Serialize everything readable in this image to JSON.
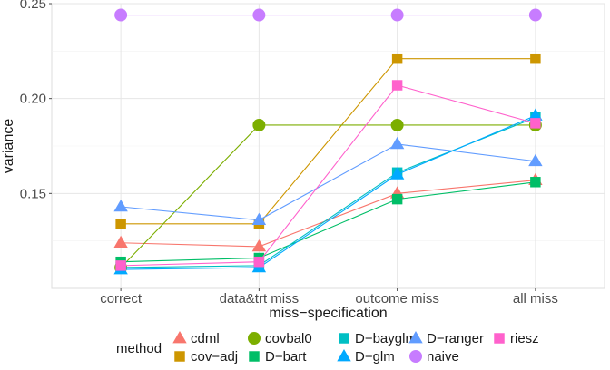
{
  "chart_data": {
    "type": "line",
    "title": "",
    "xlabel": "miss−specification",
    "ylabel": "variance",
    "categories": [
      "correct",
      "data&trt miss",
      "outcome miss",
      "all miss"
    ],
    "ylim": [
      0.1,
      0.25
    ],
    "yticks": [
      "0.15",
      "0.20",
      "0.25"
    ],
    "grid": true,
    "legend_position": "bottom",
    "legend_title": "method",
    "series": [
      {
        "name": "cdml",
        "color": "#F8766D",
        "marker": "triangle",
        "values": [
          0.124,
          0.122,
          0.15,
          0.157
        ]
      },
      {
        "name": "cov−adj",
        "color": "#CD9600",
        "marker": "square",
        "values": [
          0.134,
          0.134,
          0.221,
          0.221
        ]
      },
      {
        "name": "covbal0",
        "color": "#7CAE00",
        "marker": "circle",
        "values": [
          0.111,
          0.186,
          0.186,
          0.186
        ]
      },
      {
        "name": "D−bart",
        "color": "#00BE67",
        "marker": "square",
        "values": [
          0.114,
          0.116,
          0.147,
          0.156
        ]
      },
      {
        "name": "D−bayglm",
        "color": "#00BFC4",
        "marker": "square",
        "values": [
          0.111,
          0.112,
          0.161,
          0.19
        ]
      },
      {
        "name": "D−glm",
        "color": "#00A9FF",
        "marker": "triangle",
        "values": [
          0.11,
          0.111,
          0.16,
          0.191
        ]
      },
      {
        "name": "D−ranger",
        "color": "#619CFF",
        "marker": "triangle",
        "values": [
          0.143,
          0.136,
          0.176,
          0.167
        ]
      },
      {
        "name": "naive",
        "color": "#C77CFF",
        "marker": "circle",
        "values": [
          0.244,
          0.244,
          0.244,
          0.244
        ]
      },
      {
        "name": "riesz",
        "color": "#FF61CC",
        "marker": "square",
        "values": [
          0.112,
          0.114,
          0.207,
          0.187
        ]
      }
    ]
  }
}
